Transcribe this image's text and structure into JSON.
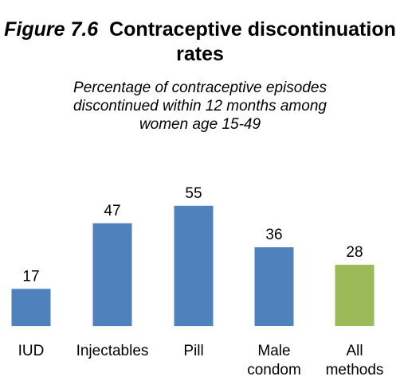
{
  "figure": {
    "number": "Figure 7.6",
    "title": "Contraceptive discontinuation rates",
    "subtitle_lines": [
      "Percentage of contraceptive episodes",
      "discontinued within 12 months among",
      "women age 15-49"
    ]
  },
  "chart_data": {
    "type": "bar",
    "title": "Figure 7.6 Contraceptive discontinuation rates",
    "subtitle": "Percentage of contraceptive episodes discontinued within 12 months among women age 15-49",
    "categories": [
      "IUD",
      "Injectables",
      "Pill",
      "Male condom",
      "All methods"
    ],
    "category_lines": [
      [
        "IUD"
      ],
      [
        "Injectables"
      ],
      [
        "Pill"
      ],
      [
        "Male",
        "condom"
      ],
      [
        "All",
        "methods"
      ]
    ],
    "values": [
      17,
      47,
      55,
      36,
      28
    ],
    "colors": [
      "#4f81bd",
      "#4f81bd",
      "#4f81bd",
      "#4f81bd",
      "#9bbb59"
    ],
    "data_labels": true,
    "ylim": [
      0,
      60
    ],
    "grid": false,
    "legend": "none",
    "xlabel": "",
    "ylabel": ""
  }
}
